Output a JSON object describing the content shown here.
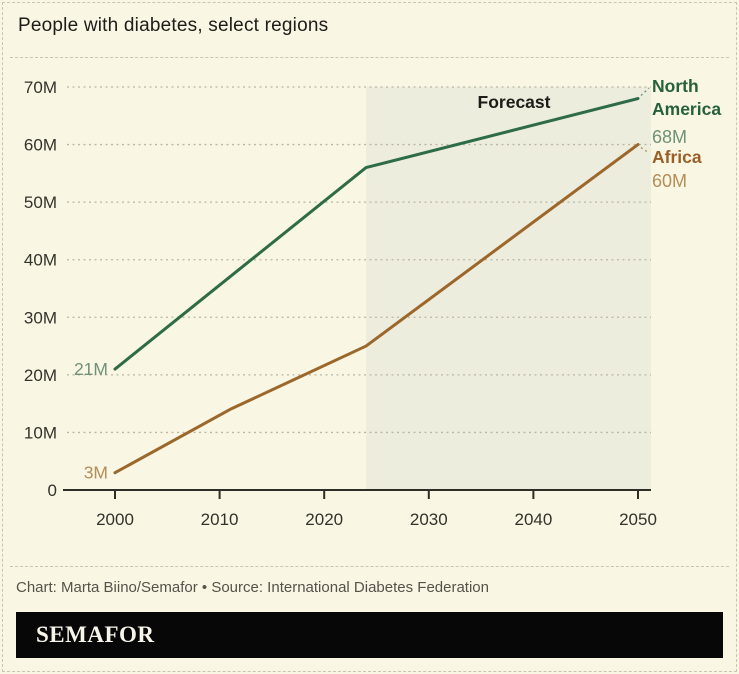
{
  "header": {
    "title": "People with diabetes, select regions"
  },
  "chart_data": {
    "type": "line",
    "title": "People with diabetes, select regions",
    "xlabel": "",
    "ylabel": "",
    "xlim": [
      2000,
      2050
    ],
    "ylim": [
      0,
      70
    ],
    "x_ticks": [
      2000,
      2010,
      2020,
      2030,
      2040,
      2050
    ],
    "y_ticks": [
      0,
      10,
      20,
      30,
      40,
      50,
      60,
      70
    ],
    "y_tick_suffix": "M",
    "grid": "horizontal-dotted",
    "legend_position": "right-of-line-ends",
    "forecast_band": {
      "label": "Forecast",
      "from_year": 2024,
      "to_year": 2050
    },
    "series": [
      {
        "name": "North America",
        "color": "#2e6b47",
        "label_color": "#26603c",
        "value_label_color": "#6f9179",
        "start_label": "21M",
        "end_label": "68M",
        "points": [
          [
            2000,
            21
          ],
          [
            2024,
            56
          ],
          [
            2050,
            68
          ]
        ]
      },
      {
        "name": "Africa",
        "color": "#9c672b",
        "label_color": "#9a5e27",
        "value_label_color": "#b48e58",
        "start_label": "3M",
        "end_label": "60M",
        "points": [
          [
            2000,
            3
          ],
          [
            2011,
            14
          ],
          [
            2024,
            25
          ],
          [
            2050,
            60
          ]
        ]
      }
    ]
  },
  "footer": {
    "credit": "Chart: Marta Biino/Semafor • Source: International Diabetes Federation"
  },
  "brand": {
    "logo_text": "SEMAFOR"
  },
  "colors": {
    "background": "#f9f6e3",
    "forecast_band": "#ededde",
    "gridline": "#b9b6a6",
    "axis": "#2e2d26",
    "tick_text": "#33322b",
    "title_text": "#1d1c18",
    "forecast_label_text": "#1d1c18",
    "credit_text": "#55524a",
    "logo_bar": "#070707",
    "logo_text": "#f7f4ea",
    "border_dash": "#c8c5b4"
  }
}
